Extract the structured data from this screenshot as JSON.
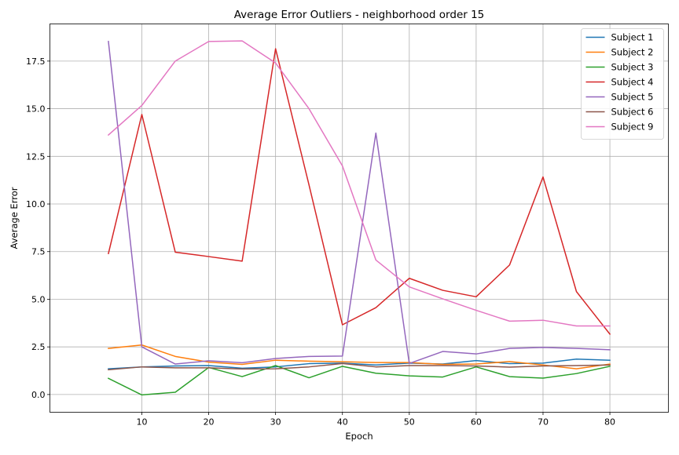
{
  "chart_data": {
    "type": "line",
    "title": "Average Error Outliers - neighborhood order 15",
    "xlabel": "Epoch",
    "ylabel": "Average Error",
    "x": [
      5,
      10,
      15,
      20,
      25,
      30,
      35,
      40,
      45,
      50,
      55,
      60,
      65,
      70,
      75,
      80
    ],
    "xlim": [
      -3.75,
      88.75
    ],
    "ylim": [
      -0.93,
      19.45
    ],
    "x_ticks": [
      "10",
      "20",
      "30",
      "40",
      "50",
      "60",
      "70",
      "80"
    ],
    "y_ticks": [
      "0.0",
      "2.5",
      "5.0",
      "7.5",
      "10.0",
      "12.5",
      "15.0",
      "17.5"
    ],
    "grid": true,
    "legend_position": "top-right",
    "series": [
      {
        "name": "Subject 1",
        "color": "#1f77b4",
        "values": [
          1.35,
          1.45,
          1.5,
          1.52,
          1.38,
          1.45,
          1.62,
          1.65,
          1.55,
          1.65,
          1.6,
          1.78,
          1.62,
          1.65,
          1.86,
          1.8
        ]
      },
      {
        "name": "Subject 2",
        "color": "#ff7f0e",
        "values": [
          2.42,
          2.6,
          2.0,
          1.7,
          1.58,
          1.8,
          1.75,
          1.72,
          1.68,
          1.68,
          1.58,
          1.6,
          1.73,
          1.55,
          1.35,
          1.6
        ]
      },
      {
        "name": "Subject 3",
        "color": "#2ca02c",
        "values": [
          0.85,
          -0.02,
          0.12,
          1.42,
          0.94,
          1.52,
          0.88,
          1.48,
          1.12,
          0.98,
          0.92,
          1.45,
          0.94,
          0.86,
          1.1,
          1.48
        ]
      },
      {
        "name": "Subject 4",
        "color": "#d62728",
        "values": [
          7.4,
          14.7,
          7.47,
          7.24,
          7.0,
          18.15,
          11.0,
          3.66,
          4.56,
          6.1,
          5.47,
          5.13,
          6.8,
          11.42,
          5.4,
          3.17
        ]
      },
      {
        "name": "Subject 5",
        "color": "#9467bd",
        "values": [
          18.53,
          2.5,
          1.6,
          1.77,
          1.67,
          1.89,
          2.0,
          2.02,
          13.72,
          1.63,
          2.26,
          2.13,
          2.42,
          2.47,
          2.42,
          2.35
        ]
      },
      {
        "name": "Subject 6",
        "color": "#8c564b",
        "values": [
          1.3,
          1.45,
          1.4,
          1.4,
          1.34,
          1.35,
          1.45,
          1.63,
          1.45,
          1.52,
          1.52,
          1.5,
          1.44,
          1.5,
          1.52,
          1.55
        ]
      },
      {
        "name": "Subject 9",
        "color": "#e377c2",
        "values": [
          13.62,
          15.17,
          17.5,
          18.53,
          18.56,
          17.4,
          15.0,
          12.0,
          7.06,
          5.65,
          5.02,
          4.42,
          3.85,
          3.9,
          3.6,
          3.6
        ]
      }
    ]
  }
}
